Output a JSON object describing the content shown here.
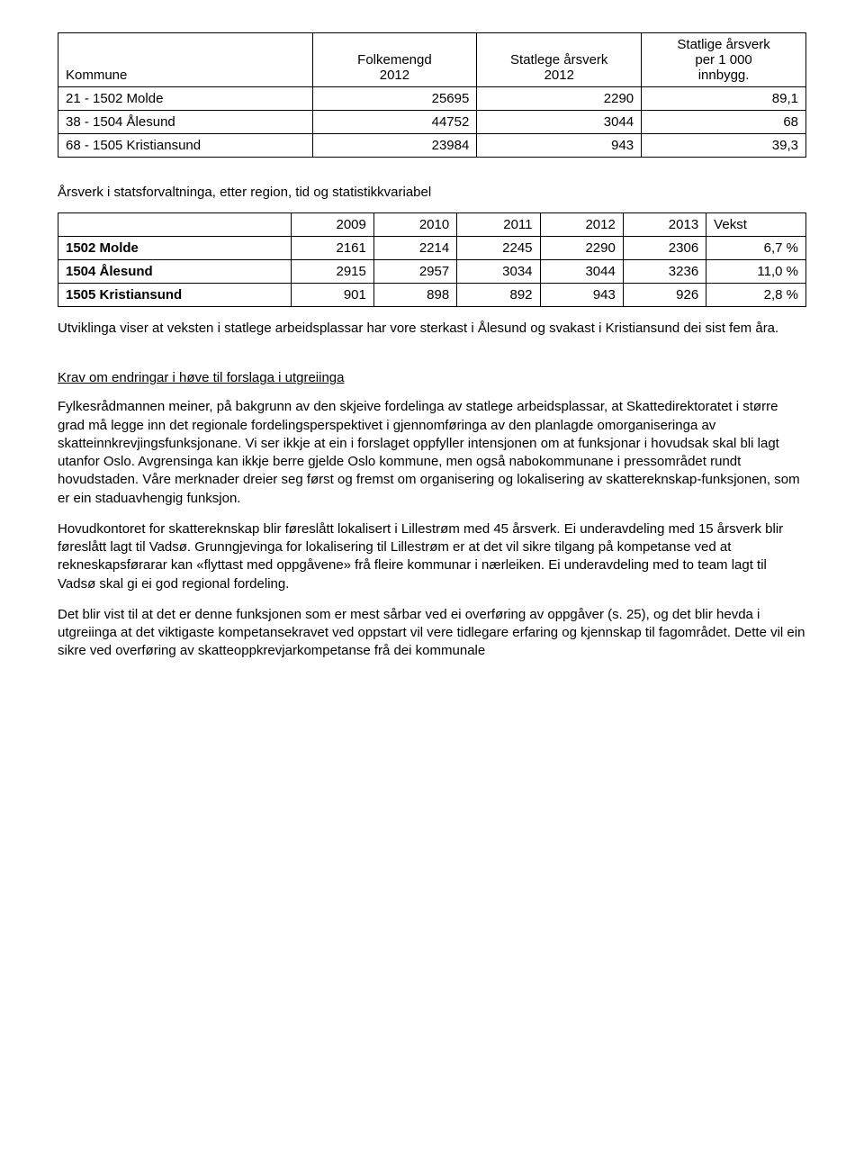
{
  "table1": {
    "headers": {
      "kommune": "Kommune",
      "folkemengd": "Folkemengd\n2012",
      "statlege": "Statlege årsverk\n2012",
      "statlige": "Statlige årsverk\nper 1 000\ninnbygg."
    },
    "rows": [
      {
        "name": "21 - 1502 Molde",
        "v1": "25695",
        "v2": "2290",
        "v3": "89,1"
      },
      {
        "name": "38 - 1504 Ålesund",
        "v1": "44752",
        "v2": "3044",
        "v3": "68"
      },
      {
        "name": "68 - 1505 Kristiansund",
        "v1": "23984",
        "v2": "943",
        "v3": "39,3"
      }
    ]
  },
  "caption2": "Årsverk i statsforvaltninga, etter region, tid og statistikkvariabel",
  "table2": {
    "years": [
      "2009",
      "2010",
      "2011",
      "2012",
      "2013",
      "Vekst"
    ],
    "rows": [
      {
        "name": "1502 Molde",
        "cells": [
          "2161",
          "2214",
          "2245",
          "2290",
          "2306",
          "6,7 %"
        ]
      },
      {
        "name": "1504 Ålesund",
        "cells": [
          "2915",
          "2957",
          "3034",
          "3044",
          "3236",
          "11,0 %"
        ]
      },
      {
        "name": "1505 Kristiansund",
        "cells": [
          "901",
          "898",
          "892",
          "943",
          "926",
          "2,8 %"
        ]
      }
    ]
  },
  "para1": "Utviklinga viser at veksten i statlege arbeidsplassar har vore sterkast i Ålesund og svakast i Kristiansund dei sist fem åra.",
  "section_title": "Krav om endringar i høve til forslaga i utgreiinga",
  "para2": "Fylkesrådmannen meiner,  på bakgrunn av den skjeive fordelinga av statlege arbeidsplassar, at Skattedirektoratet i større grad må legge inn det regionale fordelingsperspektivet i gjennomføringa av den planlagde omorganiseringa av skatteinnkrevjingsfunksjonane.  Vi ser ikkje at ein i forslaget oppfyller intensjonen om at funksjonar i hovudsak skal bli lagt utanfor Oslo. Avgrensinga kan ikkje berre gjelde Oslo kommune, men også nabokommunane i pressområdet rundt hovudstaden. Våre merknader dreier seg først og fremst om organisering og lokalisering av skattereknskap-funksjonen, som er ein staduavhengig funksjon.",
  "para3": "Hovudkontoret for skattereknskap blir føreslått lokalisert i Lillestrøm med 45 årsverk. Ei underavdeling med 15 årsverk blir føreslått lagt til Vadsø. Grunngjevinga for lokalisering til Lillestrøm er at det vil sikre tilgang på kompetanse ved at rekneskapsførarar kan «flyttast med oppgåvene» frå fleire kommunar i nærleiken. Ei underavdeling med to team lagt til Vadsø skal gi ei god regional fordeling.",
  "para4": "Det blir vist til at det er denne funksjonen som er mest sårbar ved ei overføring av oppgåver (s. 25), og det blir hevda i utgreiinga at det viktigaste kompetansekravet ved oppstart vil vere tidlegare erfaring og kjennskap til fagområdet. Dette vil ein sikre ved overføring av skatteoppkrevjarkompetanse frå dei kommunale"
}
